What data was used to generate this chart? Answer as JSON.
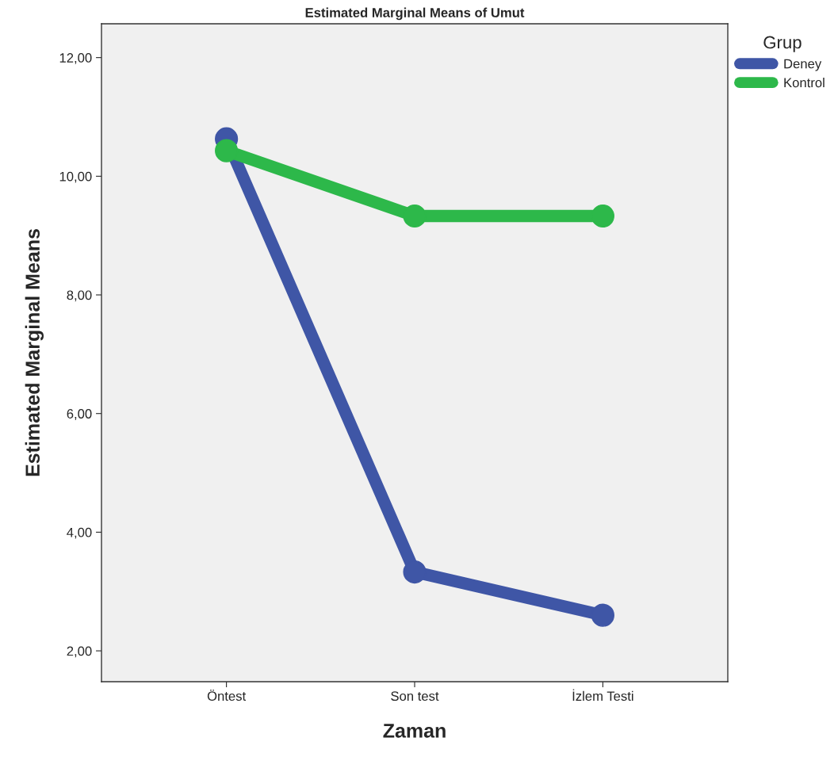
{
  "chart_data": {
    "type": "line",
    "title": "Estimated Marginal Means of Umut",
    "xlabel": "Zaman",
    "ylabel": "Estimated Marginal Means",
    "legend_title": "Grup",
    "categories": [
      "Öntest",
      "Son test",
      "İzlem Testi"
    ],
    "series": [
      {
        "name": "Deney",
        "color": "#3f56a6",
        "values": [
          10.63,
          3.33,
          2.6
        ]
      },
      {
        "name": "Kontrol",
        "color": "#2db84a",
        "values": [
          10.43,
          9.33,
          9.33
        ]
      }
    ],
    "ylim": [
      1.48,
      12.57
    ],
    "yticks": [
      {
        "value": 2,
        "label": "2,00"
      },
      {
        "value": 4,
        "label": "4,00"
      },
      {
        "value": 6,
        "label": "6,00"
      },
      {
        "value": 8,
        "label": "8,00"
      },
      {
        "value": 10,
        "label": "10,00"
      },
      {
        "value": 12,
        "label": "12,00"
      }
    ],
    "grid": false,
    "legend": "top right",
    "marker": "circle",
    "line_style": "solid"
  }
}
